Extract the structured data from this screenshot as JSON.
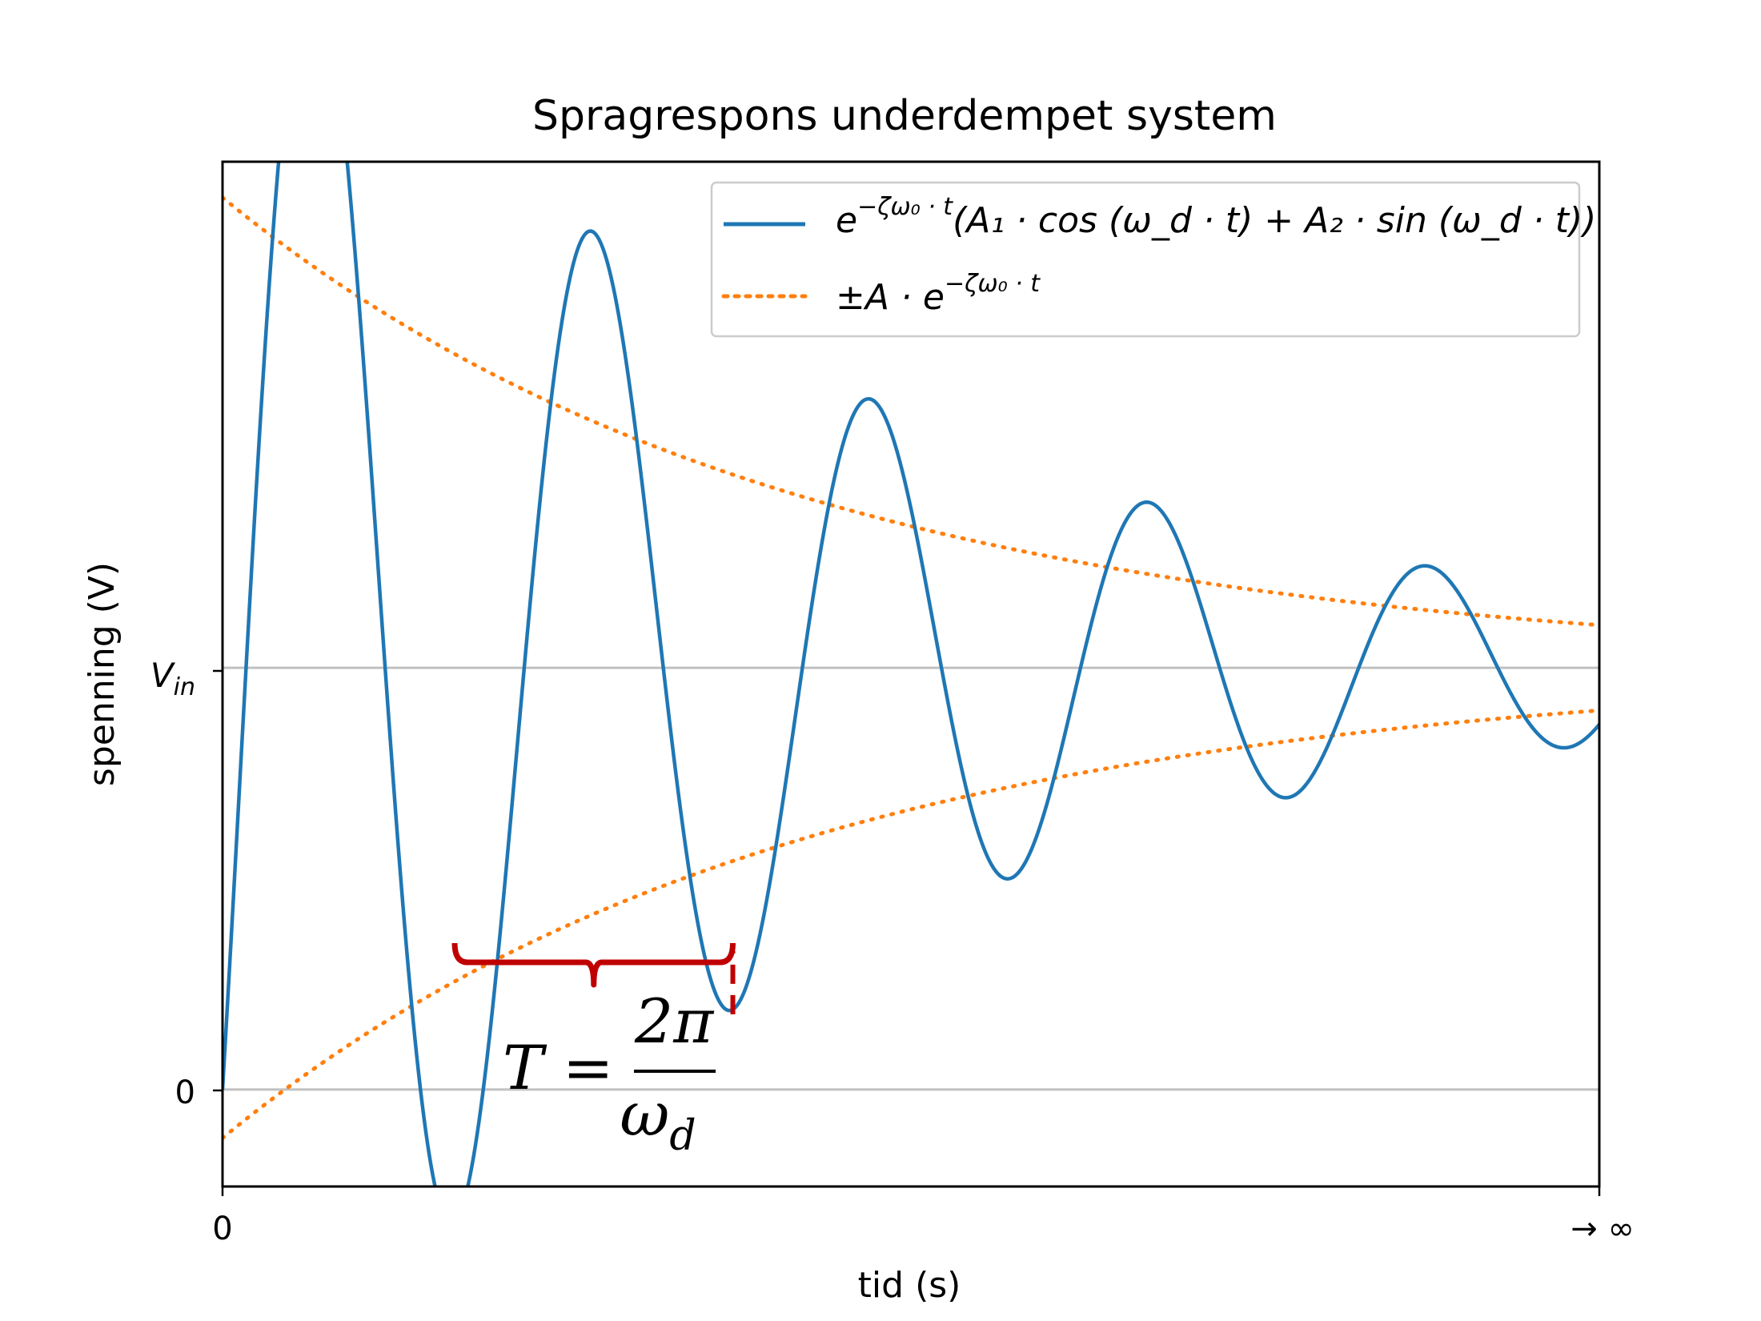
{
  "chart_data": {
    "type": "line",
    "title": "Spragrespons underdempet system",
    "xlabel": "tid (s)",
    "ylabel": "spenning (V)",
    "x_tick_labels": [
      "0",
      "→ ∞"
    ],
    "y_tick_labels": [
      "0",
      "V_in"
    ],
    "y_tick_main": "V",
    "y_tick_sub": "in",
    "xlim": [
      0,
      1
    ],
    "ylim": [
      -0.23,
      2.2
    ],
    "grid": false,
    "reference_lines_y": [
      0,
      1
    ],
    "legend_position": "top-right",
    "series": [
      {
        "name": "e^{−ζω₀·t}(A₁·cos(ω_d·t) + A₂·sin(ω_d·t))",
        "style": "solid",
        "color": "#1f77b4",
        "function": {
          "steady_value": 1,
          "decay": 2.4,
          "omega_d": 31.1,
          "A1": -1,
          "A2": 1.7
        }
      },
      {
        "name": "±A·e^{−ζω₀·t}",
        "style": "dotted",
        "color": "#ff7f0e",
        "function": {
          "steady_value": 1,
          "amplitude": 1.115,
          "decay": 2.4
        }
      }
    ],
    "annotation": {
      "label": "T = 2π / ω_d",
      "meaning": "period between two successive minima",
      "color": "#c00000"
    }
  },
  "legend": {
    "curve_label_parts": {
      "base": "e",
      "exponent": "−ζω₀ · t",
      "body": "(A₁ · cos (ω_d · t) + A₂ · sin (ω_d · t))"
    },
    "envelope_label_parts": {
      "prefix": "±A · e",
      "exponent": "−ζω₀ · t"
    }
  },
  "annotation_text": {
    "lhs": "T =",
    "numerator": "2π",
    "denominator": "ω",
    "denominator_sub": "d"
  }
}
